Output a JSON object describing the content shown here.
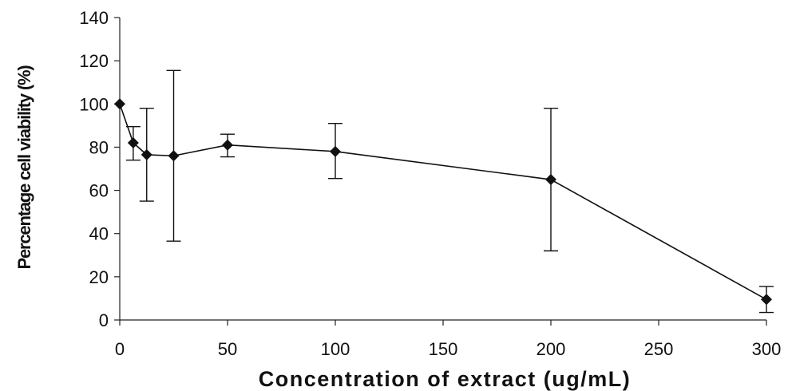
{
  "chart_data": {
    "type": "line",
    "title": "",
    "xlabel": "Concentration of extract (ug/mL)",
    "ylabel": "Percentage cell viability (%)",
    "xlim": [
      0,
      300
    ],
    "ylim": [
      0,
      140
    ],
    "xticks": [
      0,
      50,
      100,
      150,
      200,
      250,
      300
    ],
    "yticks": [
      0,
      20,
      40,
      60,
      80,
      100,
      120,
      140
    ],
    "grid": false,
    "legend": "none",
    "marker": "diamond",
    "line_color": "#111111",
    "series": [
      {
        "x": [
          0,
          6.25,
          12.5,
          25,
          50,
          100,
          200,
          300
        ],
        "y": [
          100,
          82,
          76.5,
          76,
          81,
          78,
          65,
          9.5
        ],
        "error_low": [
          100,
          74,
          55,
          36.5,
          75.5,
          65.5,
          32,
          3.5
        ],
        "error_high": [
          100,
          89.5,
          98,
          115.5,
          86,
          91,
          98,
          15.5
        ]
      }
    ]
  }
}
